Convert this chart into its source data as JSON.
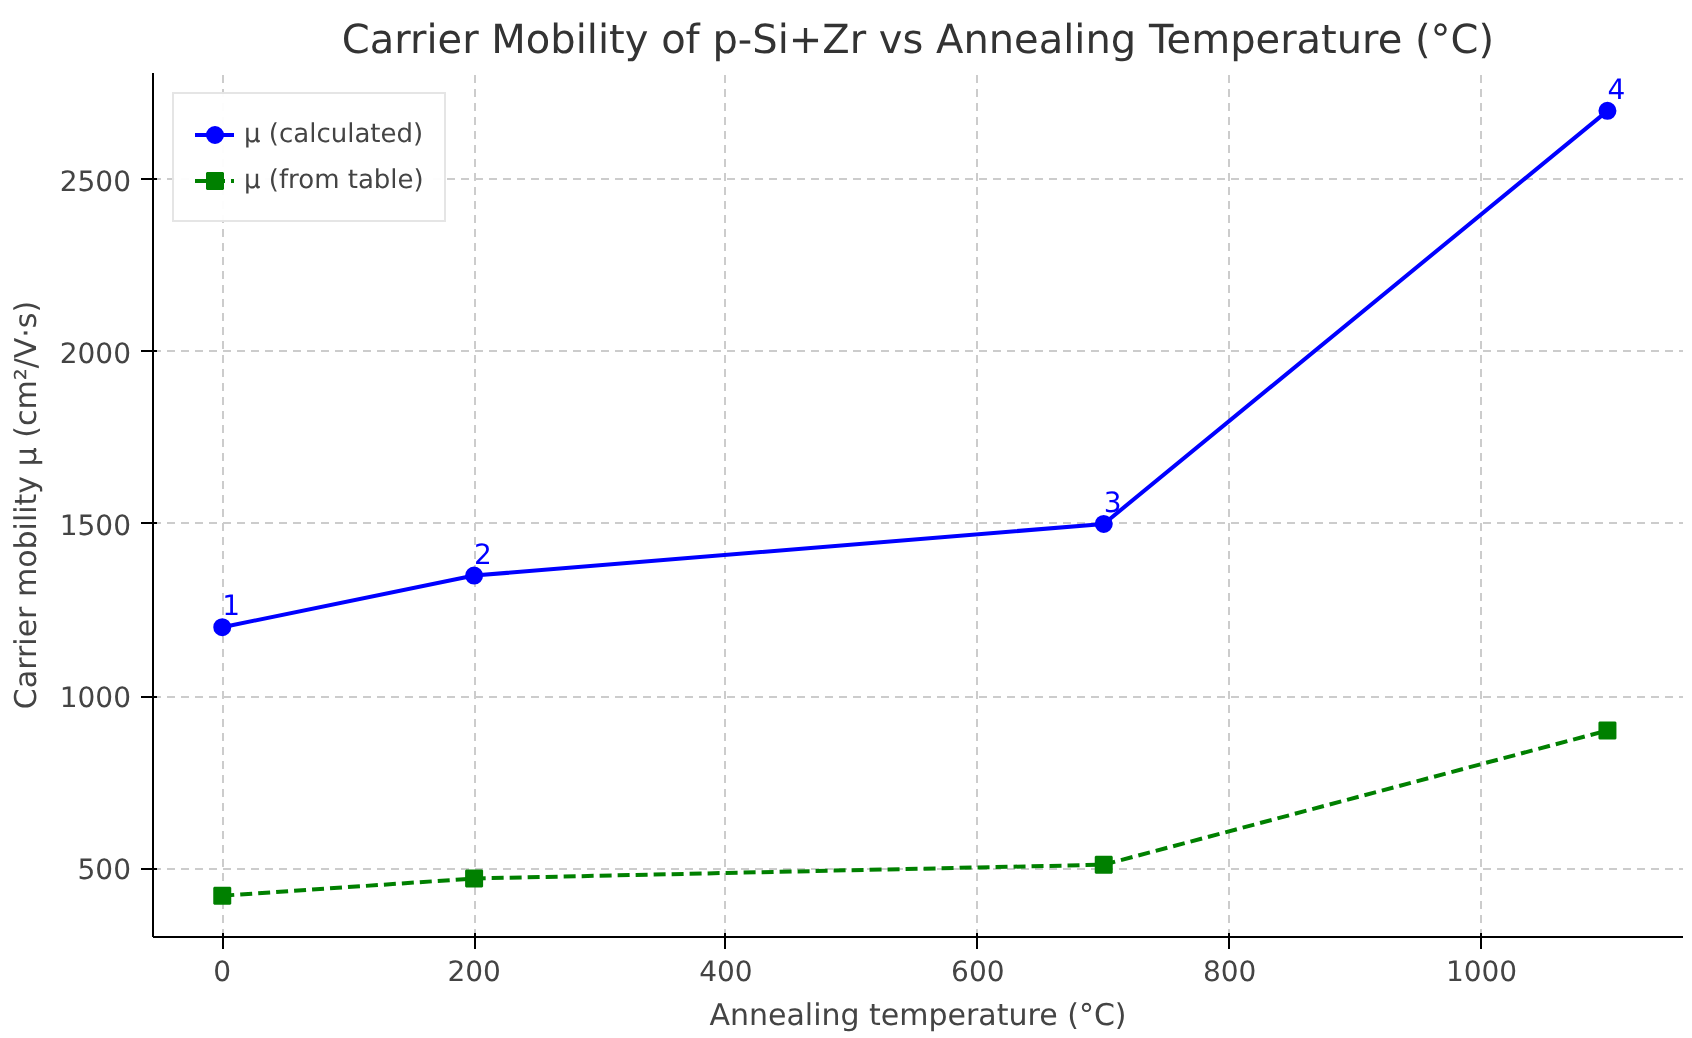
{
  "chart_data": {
    "type": "line",
    "title": "Carrier Mobility of p-Si+Zr vs Annealing Temperature (°C)",
    "xlabel": "Annealing temperature (°C)",
    "ylabel": "Carrier mobility μ (cm²/V·s)",
    "x": [
      0,
      200,
      700,
      1100
    ],
    "series": [
      {
        "name": "μ (calculated)",
        "color": "#0000ff",
        "values": [
          1200,
          1350,
          1500,
          2700
        ],
        "marker": "circle",
        "line_style": "solid"
      },
      {
        "name": "μ (from table)",
        "color": "#008000",
        "values": [
          420,
          470,
          510,
          900
        ],
        "marker": "square",
        "line_style": "dashed"
      }
    ],
    "annotations": [
      {
        "text": "1",
        "x": 0,
        "y": 1200
      },
      {
        "text": "2",
        "x": 200,
        "y": 1350
      },
      {
        "text": "3",
        "x": 700,
        "y": 1500
      },
      {
        "text": "4",
        "x": 1100,
        "y": 2700
      }
    ],
    "xlim": [
      -55,
      1160
    ],
    "ylim": [
      300,
      2810
    ],
    "xticks": [
      0,
      200,
      400,
      600,
      800,
      1000
    ],
    "yticks": [
      500,
      1000,
      1500,
      2000,
      2500
    ],
    "grid": true,
    "legend": "top left"
  }
}
